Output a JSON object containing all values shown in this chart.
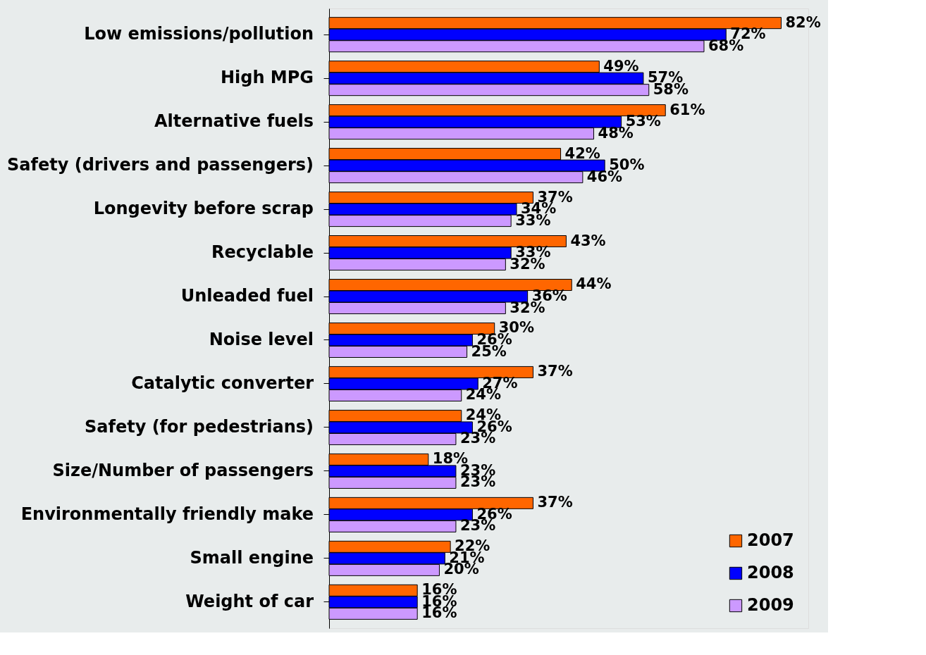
{
  "chart_data": {
    "type": "bar",
    "orientation": "horizontal",
    "categories": [
      "Low emissions/pollution",
      "High MPG",
      "Alternative fuels",
      "Safety (drivers and passengers)",
      "Longevity before scrap",
      "Recyclable",
      "Unleaded fuel",
      "Noise level",
      "Catalytic converter",
      "Safety (for pedestrians)",
      "Size/Number of passengers",
      "Environmentally friendly make",
      "Small engine",
      "Weight of car"
    ],
    "series": [
      {
        "name": "2007",
        "color": "#ff6600",
        "values": [
          82,
          49,
          61,
          42,
          37,
          43,
          44,
          30,
          37,
          24,
          18,
          37,
          22,
          16
        ],
        "value_labels": [
          "82%",
          "49%",
          "61%",
          "42%",
          "37%",
          "43%",
          "44%",
          "30%",
          "37%",
          "24%",
          "18%",
          "37%",
          "22%",
          "16%"
        ]
      },
      {
        "name": "2008",
        "color": "#0000ff",
        "values": [
          72,
          57,
          53,
          50,
          34,
          33,
          36,
          26,
          27,
          26,
          23,
          26,
          21,
          16
        ],
        "value_labels": [
          "72%",
          "57%",
          "53%",
          "50%",
          "34%",
          "33%",
          "36%",
          "26%",
          "27%",
          "26%",
          "23%",
          "26%",
          "21%",
          "16%"
        ]
      },
      {
        "name": "2009",
        "color": "#cc99ff",
        "values": [
          68,
          58,
          48,
          46,
          33,
          32,
          32,
          25,
          24,
          23,
          23,
          23,
          20,
          16
        ],
        "value_labels": [
          "68%",
          "58%",
          "48%",
          "46%",
          "33%",
          "32%",
          "32%",
          "25%",
          "24%",
          "23%",
          "23%",
          "23%",
          "20%",
          "16%"
        ]
      }
    ],
    "legend": "bottom right",
    "grid": false
  }
}
